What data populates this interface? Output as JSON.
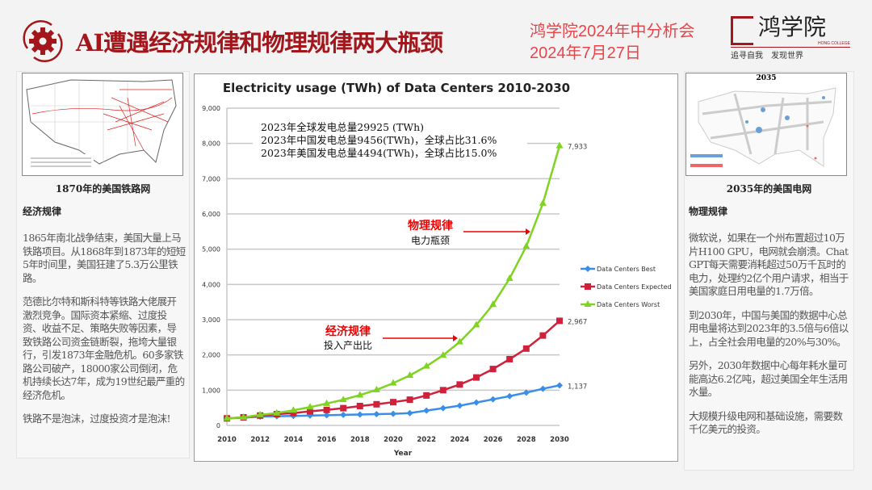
{
  "header": {
    "title": "AI遭遇经济规律和物理规律两大瓶颈",
    "event": "鸿学院2024年中分析会",
    "date": "2024年7月27日",
    "logo_text": "鸿学院",
    "logo_sub": "HONG COLLEGE",
    "slogan": "追寻自我　发现世界",
    "accent": "#a3161c"
  },
  "left": {
    "caption": "1870年的美国铁路网",
    "heading": "经济规律",
    "paragraphs": [
      "1865年南北战争结束，美国大量上马铁路项目。从1868年到1873年的短短5年时间里，美国狂建了5.3万公里铁路。",
      "范德比尔特和斯科特等铁路大佬展开激烈竞争。国际资本紧缩、过度投资、收益不足、策略失败等因素，导致铁路公司资金链断裂，拖垮大量银行，引发1873年金融危机。60多家铁路公司破产，18000家公司倒闭，危机持续长达7年，成为19世纪最严重的经济危机。",
      "铁路不是泡沫，过度投资才是泡沫!"
    ]
  },
  "right": {
    "caption": "2035年的美国电网",
    "map_title": "2035",
    "heading": "物理规律",
    "paragraphs": [
      "微软说，如果在一个州布置超过10万片H100 GPU，电网就会崩溃。ChatGPT每天需要消耗超过50万千瓦时的电力，处理约2亿个用户请求，相当于美国家庭日用电量的1.7万倍。",
      "到2030年，中国与美国的数据中心总用电量将达到2023年的3.5倍与6倍以上，占全社会用电量的20%与30%。",
      "另外，2030年数据中心每年耗水量可能高达6.2亿吨，超过美国全年生活用水量。",
      "大规模升级电网和基础设施，需要数千亿美元的投资。"
    ]
  },
  "chart_data": {
    "type": "line",
    "title": "Electricity usage (TWh) of Data Centers 2010-2030",
    "xlabel": "Year",
    "ylabel": "",
    "ylim": [
      0,
      9000
    ],
    "yticks": [
      "0",
      "1,000",
      "2,000",
      "3,000",
      "4,000",
      "5,000",
      "6,000",
      "7,000",
      "8,000",
      "9,000"
    ],
    "xticks": [
      "2010",
      "2012",
      "2014",
      "2016",
      "2018",
      "2020",
      "2022",
      "2024",
      "2026",
      "2028",
      "2030"
    ],
    "x": [
      2010,
      2011,
      2012,
      2013,
      2014,
      2015,
      2016,
      2017,
      2018,
      2019,
      2020,
      2021,
      2022,
      2023,
      2024,
      2025,
      2026,
      2027,
      2028,
      2029,
      2030
    ],
    "series": [
      {
        "name": "Data Centers Best",
        "color": "#3b8ee8",
        "marker": "diamond",
        "end_label": "1,137",
        "values": [
          200,
          220,
          250,
          260,
          270,
          280,
          290,
          300,
          310,
          320,
          330,
          350,
          420,
          490,
          560,
          650,
          740,
          830,
          930,
          1040,
          1137
        ]
      },
      {
        "name": "Data Centers Expected",
        "color": "#d0213c",
        "marker": "square",
        "end_label": "2,967",
        "values": [
          200,
          230,
          280,
          320,
          350,
          400,
          440,
          490,
          550,
          600,
          660,
          730,
          850,
          1000,
          1160,
          1360,
          1600,
          1880,
          2180,
          2550,
          2967
        ]
      },
      {
        "name": "Data Centers Worst",
        "color": "#7fd321",
        "marker": "triangle",
        "end_label": "7,933",
        "values": [
          200,
          230,
          300,
          350,
          430,
          520,
          620,
          730,
          860,
          1010,
          1200,
          1420,
          1680,
          1990,
          2370,
          2850,
          3430,
          4170,
          5080,
          6300,
          7933
        ]
      }
    ],
    "legend_position": "right",
    "grid": true,
    "annotations": {
      "stats": [
        "2023年全球发电总量29925 (TWh)",
        "2023年中国发电总量9456(TWh)，全球占比31.6%",
        "2023年美国发电总量4494(TWh)，全球占比15.0%"
      ],
      "physics_red": "物理规律",
      "physics_black": "电力瓶颈",
      "econ_red": "经济规律",
      "econ_black": "投入产出比"
    }
  }
}
